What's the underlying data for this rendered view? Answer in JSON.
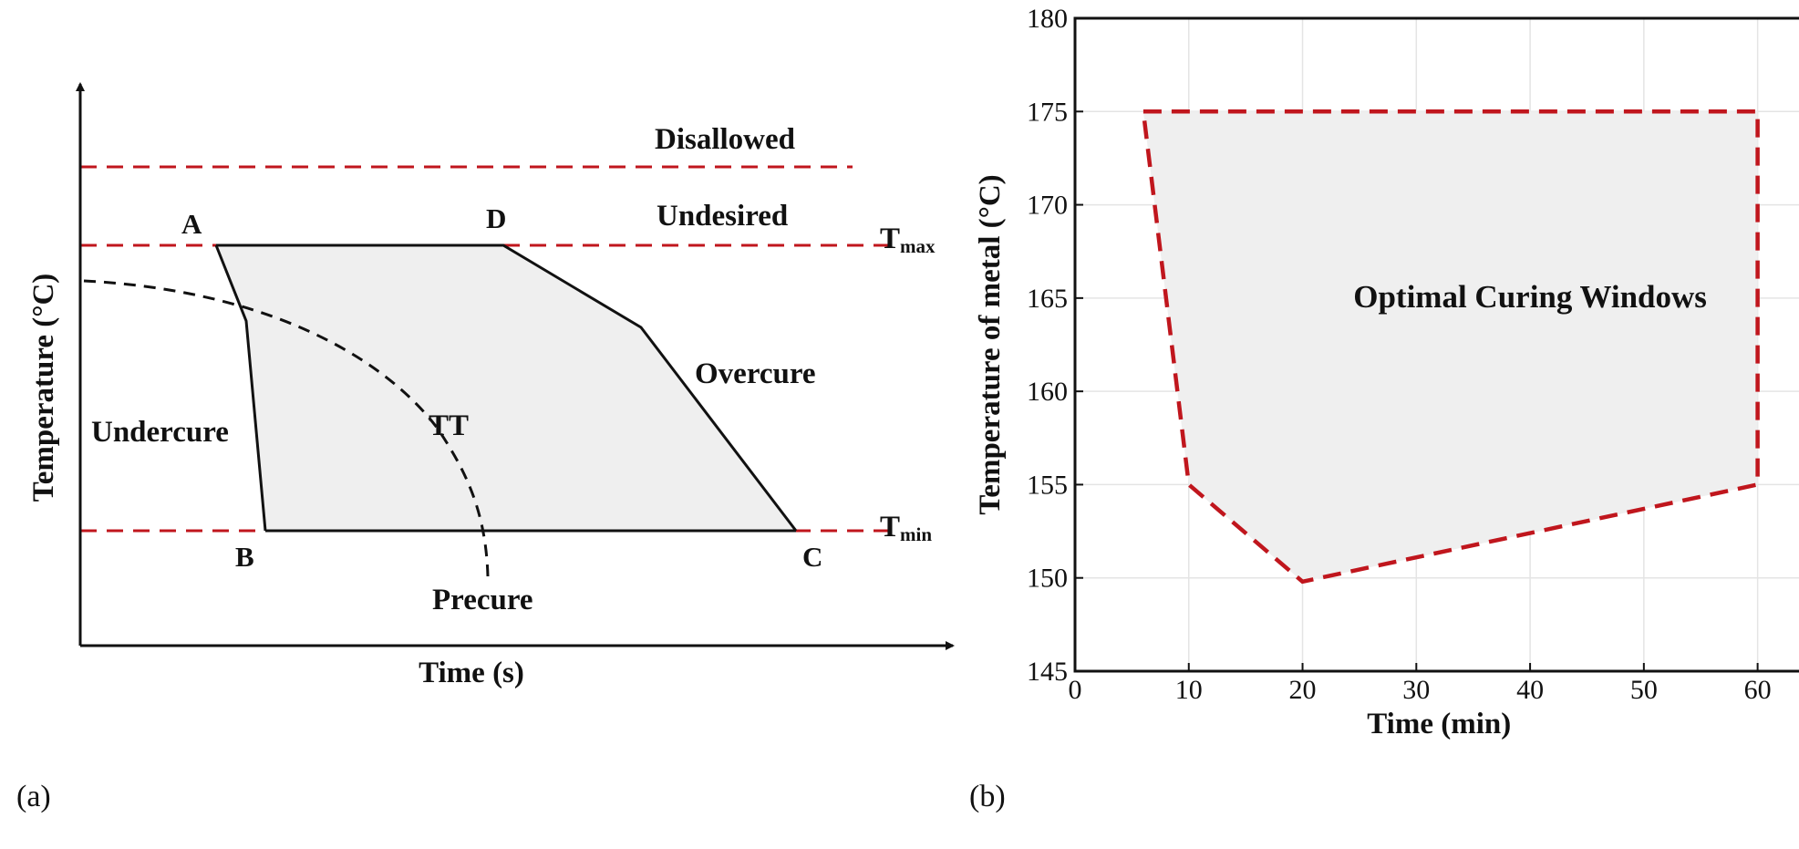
{
  "colors": {
    "boundary_red": "#c0161d",
    "window_fill": "#efefef",
    "axis": "#111111",
    "grid": "#e4e4e4"
  },
  "panels": {
    "a_label": "(a)",
    "b_label": "(b)"
  },
  "chart_data": [
    {
      "type": "diagram",
      "panel": "a",
      "xlabel": "Time (s)",
      "ylabel": "Temperature (°C)",
      "zones": {
        "disallowed": "Disallowed",
        "undesired": "Undesired",
        "overcure": "Overcure",
        "undercure": "Undercure",
        "precure": "Precure",
        "tt": "TT"
      },
      "lines": {
        "tmax_base": "T",
        "tmax_sub": "max",
        "tmin_base": "T",
        "tmin_sub": "min"
      },
      "points": {
        "A": "A",
        "B": "B",
        "C": "C",
        "D": "D"
      }
    },
    {
      "type": "area",
      "panel": "b",
      "title": "Optimal Curing Windows",
      "xlabel": "Time (min)",
      "ylabel": "Temperature of metal (°C)",
      "xlim": [
        0,
        65
      ],
      "ylim": [
        145,
        180
      ],
      "xticks": [
        0,
        10,
        20,
        30,
        40,
        50,
        60
      ],
      "yticks": [
        145,
        150,
        155,
        160,
        165,
        170,
        175,
        180
      ],
      "grid": true,
      "series": [
        {
          "x": [
            6,
            60,
            60,
            20,
            10,
            6
          ],
          "y": [
            175,
            175,
            155,
            149.8,
            155,
            175
          ]
        }
      ]
    }
  ]
}
